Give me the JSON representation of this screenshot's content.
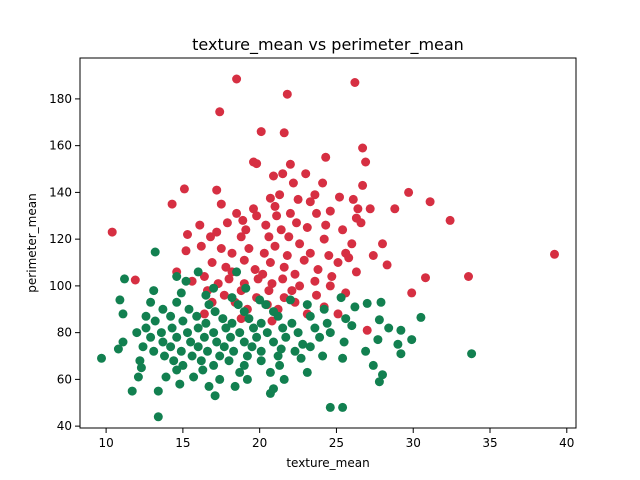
{
  "chart_data": {
    "type": "scatter",
    "title": "texture_mean vs perimeter_mean",
    "xlabel": "texture_mean",
    "ylabel": "perimeter_mean",
    "xlim": [
      8.3,
      40.6
    ],
    "ylim": [
      39.2,
      197.5
    ],
    "x_ticks": [
      10,
      15,
      20,
      25,
      30,
      35,
      40
    ],
    "y_ticks": [
      40,
      60,
      80,
      100,
      120,
      140,
      160,
      180
    ],
    "grid": false,
    "legend": "none",
    "series": [
      {
        "color": "#d62f42",
        "points": [
          [
            18.5,
            188.5
          ],
          [
            26.2,
            187
          ],
          [
            21.8,
            182
          ],
          [
            17.4,
            174.5
          ],
          [
            20.1,
            166
          ],
          [
            21.6,
            165.5
          ],
          [
            26.7,
            159
          ],
          [
            19.6,
            153
          ],
          [
            19.8,
            152.3
          ],
          [
            22.0,
            152
          ],
          [
            24.3,
            155
          ],
          [
            26.9,
            153
          ],
          [
            21.5,
            148
          ],
          [
            23.0,
            148
          ],
          [
            20.9,
            147
          ],
          [
            22.2,
            144
          ],
          [
            24.1,
            144
          ],
          [
            26.7,
            143
          ],
          [
            29.7,
            140
          ],
          [
            15.1,
            141.5
          ],
          [
            17.2,
            141
          ],
          [
            21.3,
            139
          ],
          [
            23.6,
            139
          ],
          [
            25.2,
            138
          ],
          [
            20.7,
            137.5
          ],
          [
            22.5,
            137
          ],
          [
            31.1,
            136
          ],
          [
            14.3,
            135
          ],
          [
            17.5,
            135
          ],
          [
            23.3,
            136
          ],
          [
            26.1,
            137
          ],
          [
            26.4,
            133
          ],
          [
            27.2,
            133
          ],
          [
            28.8,
            133
          ],
          [
            19.6,
            133
          ],
          [
            21.0,
            134
          ],
          [
            24.6,
            132
          ],
          [
            18.5,
            131
          ],
          [
            19.8,
            130
          ],
          [
            21.1,
            130
          ],
          [
            22.0,
            131
          ],
          [
            23.7,
            131
          ],
          [
            26.3,
            129
          ],
          [
            32.4,
            128
          ],
          [
            16.1,
            126
          ],
          [
            17.9,
            127
          ],
          [
            18.9,
            128
          ],
          [
            20.4,
            126
          ],
          [
            22.4,
            127
          ],
          [
            24.3,
            126
          ],
          [
            26.6,
            127
          ],
          [
            17.2,
            123
          ],
          [
            19.1,
            124
          ],
          [
            21.4,
            124
          ],
          [
            23.1,
            125
          ],
          [
            25.4,
            124
          ],
          [
            10.4,
            123
          ],
          [
            15.3,
            122
          ],
          [
            16.8,
            121
          ],
          [
            18.8,
            121
          ],
          [
            20.6,
            121
          ],
          [
            21.9,
            121
          ],
          [
            24.2,
            120
          ],
          [
            26.0,
            118
          ],
          [
            28.0,
            118
          ],
          [
            16.2,
            117
          ],
          [
            17.5,
            116
          ],
          [
            19.3,
            116
          ],
          [
            21.0,
            117
          ],
          [
            22.6,
            118
          ],
          [
            23.3,
            114
          ],
          [
            25.6,
            114
          ],
          [
            15.2,
            115
          ],
          [
            18.2,
            114
          ],
          [
            20.3,
            114
          ],
          [
            21.8,
            113
          ],
          [
            24.5,
            113
          ],
          [
            25.8,
            112
          ],
          [
            39.2,
            113.5
          ],
          [
            27.4,
            113
          ],
          [
            28.3,
            109
          ],
          [
            16.9,
            110
          ],
          [
            19.0,
            111
          ],
          [
            20.7,
            110
          ],
          [
            22.9,
            111
          ],
          [
            25.1,
            110
          ],
          [
            17.8,
            108
          ],
          [
            19.7,
            107
          ],
          [
            21.6,
            108
          ],
          [
            23.8,
            107
          ],
          [
            26.3,
            106
          ],
          [
            14.6,
            106
          ],
          [
            18.2,
            106
          ],
          [
            20.2,
            105
          ],
          [
            22.3,
            105
          ],
          [
            24.7,
            104
          ],
          [
            16.4,
            104
          ],
          [
            18.0,
            103
          ],
          [
            19.9,
            103
          ],
          [
            21.5,
            103
          ],
          [
            23.6,
            102
          ],
          [
            30.8,
            103.5
          ],
          [
            33.6,
            104
          ],
          [
            11.9,
            102.5
          ],
          [
            15.6,
            102
          ],
          [
            17.3,
            101
          ],
          [
            19.0,
            101
          ],
          [
            20.8,
            101
          ],
          [
            22.6,
            100
          ],
          [
            24.6,
            100
          ],
          [
            16.6,
            98
          ],
          [
            18.8,
            98
          ],
          [
            20.6,
            98
          ],
          [
            22.1,
            98
          ],
          [
            25.6,
            97
          ],
          [
            29.9,
            97
          ],
          [
            17.7,
            96
          ],
          [
            19.8,
            95
          ],
          [
            21.6,
            95
          ],
          [
            23.7,
            96
          ],
          [
            16.9,
            93
          ],
          [
            18.4,
            93
          ],
          [
            20.5,
            92
          ],
          [
            22.3,
            93
          ],
          [
            24.2,
            91
          ],
          [
            19.2,
            90
          ],
          [
            21.2,
            90
          ],
          [
            23.1,
            88
          ],
          [
            16.4,
            88
          ],
          [
            25.1,
            88
          ],
          [
            27.0,
            81
          ],
          [
            20.8,
            85
          ],
          [
            18.8,
            86
          ]
        ]
      },
      {
        "color": "#128050",
        "points": [
          [
            13.2,
            114.5
          ],
          [
            16.0,
            106
          ],
          [
            18.5,
            106
          ],
          [
            14.6,
            104
          ],
          [
            11.2,
            103
          ],
          [
            15.2,
            102
          ],
          [
            17.0,
            99
          ],
          [
            19.1,
            99
          ],
          [
            13.1,
            98
          ],
          [
            14.9,
            97
          ],
          [
            16.5,
            96
          ],
          [
            18.2,
            95
          ],
          [
            20.0,
            94
          ],
          [
            22.0,
            94
          ],
          [
            10.9,
            94
          ],
          [
            12.9,
            93
          ],
          [
            14.6,
            93
          ],
          [
            16.7,
            92
          ],
          [
            18.6,
            92
          ],
          [
            20.4,
            92
          ],
          [
            23.1,
            92
          ],
          [
            25.3,
            95
          ],
          [
            27.0,
            92.5
          ],
          [
            27.9,
            93
          ],
          [
            13.7,
            90
          ],
          [
            15.4,
            90
          ],
          [
            17.1,
            89
          ],
          [
            19.0,
            89
          ],
          [
            20.9,
            89
          ],
          [
            24.2,
            90
          ],
          [
            26.2,
            91
          ],
          [
            11.1,
            88
          ],
          [
            12.6,
            87
          ],
          [
            14.2,
            87
          ],
          [
            15.9,
            87
          ],
          [
            17.6,
            86
          ],
          [
            19.3,
            86
          ],
          [
            21.2,
            87
          ],
          [
            23.3,
            87
          ],
          [
            25.6,
            86
          ],
          [
            27.8,
            85.5
          ],
          [
            30.5,
            86.5
          ],
          [
            13.2,
            85
          ],
          [
            15.0,
            85
          ],
          [
            16.5,
            84
          ],
          [
            18.2,
            84
          ],
          [
            20.1,
            84
          ],
          [
            22.1,
            84
          ],
          [
            24.4,
            84
          ],
          [
            12.6,
            82
          ],
          [
            14.3,
            82
          ],
          [
            16.0,
            82
          ],
          [
            17.8,
            82
          ],
          [
            19.6,
            82
          ],
          [
            21.5,
            82
          ],
          [
            23.6,
            82
          ],
          [
            26.0,
            83
          ],
          [
            28.4,
            82
          ],
          [
            29.2,
            81
          ],
          [
            12.0,
            80
          ],
          [
            13.6,
            80
          ],
          [
            15.3,
            80
          ],
          [
            17.0,
            80
          ],
          [
            18.7,
            80
          ],
          [
            20.5,
            80
          ],
          [
            22.5,
            80
          ],
          [
            24.6,
            80
          ],
          [
            12.9,
            78
          ],
          [
            14.6,
            78
          ],
          [
            16.4,
            78
          ],
          [
            18.1,
            78
          ],
          [
            19.8,
            78
          ],
          [
            21.7,
            78
          ],
          [
            23.9,
            78
          ],
          [
            27.7,
            77
          ],
          [
            29.9,
            77
          ],
          [
            11.1,
            76
          ],
          [
            13.7,
            76
          ],
          [
            15.5,
            76
          ],
          [
            17.2,
            76
          ],
          [
            19.0,
            76
          ],
          [
            20.9,
            76
          ],
          [
            22.8,
            75
          ],
          [
            25.5,
            76
          ],
          [
            29.0,
            75
          ],
          [
            12.4,
            74
          ],
          [
            14.2,
            74
          ],
          [
            16.0,
            74
          ],
          [
            17.7,
            74
          ],
          [
            19.5,
            74
          ],
          [
            21.4,
            73
          ],
          [
            23.3,
            74
          ],
          [
            10.8,
            73
          ],
          [
            13.1,
            72
          ],
          [
            14.9,
            72
          ],
          [
            16.6,
            72
          ],
          [
            18.3,
            72
          ],
          [
            20.1,
            72
          ],
          [
            22.3,
            72
          ],
          [
            26.9,
            72
          ],
          [
            33.8,
            71
          ],
          [
            13.8,
            70
          ],
          [
            15.6,
            70
          ],
          [
            17.4,
            70
          ],
          [
            19.2,
            70
          ],
          [
            21.2,
            70
          ],
          [
            24.1,
            70
          ],
          [
            29.2,
            71
          ],
          [
            9.7,
            69
          ],
          [
            12.2,
            68
          ],
          [
            14.4,
            68
          ],
          [
            16.2,
            68
          ],
          [
            18.0,
            68
          ],
          [
            20.1,
            68
          ],
          [
            22.7,
            69
          ],
          [
            25.4,
            69
          ],
          [
            15.0,
            66
          ],
          [
            17.0,
            66
          ],
          [
            19.0,
            66
          ],
          [
            21.3,
            66
          ],
          [
            27.4,
            66
          ],
          [
            12.3,
            65
          ],
          [
            14.6,
            64
          ],
          [
            16.3,
            64
          ],
          [
            18.7,
            63
          ],
          [
            20.7,
            63
          ],
          [
            23.1,
            63
          ],
          [
            28.0,
            62
          ],
          [
            12.1,
            61
          ],
          [
            13.9,
            61
          ],
          [
            15.7,
            61
          ],
          [
            17.4,
            60
          ],
          [
            19.2,
            60
          ],
          [
            21.6,
            60
          ],
          [
            27.8,
            59
          ],
          [
            14.8,
            58
          ],
          [
            16.7,
            57
          ],
          [
            18.4,
            57
          ],
          [
            20.9,
            56
          ],
          [
            13.4,
            55
          ],
          [
            11.7,
            55
          ],
          [
            17.1,
            53
          ],
          [
            20.7,
            54
          ],
          [
            24.6,
            48
          ],
          [
            25.4,
            48
          ],
          [
            13.4,
            44
          ]
        ]
      }
    ]
  }
}
